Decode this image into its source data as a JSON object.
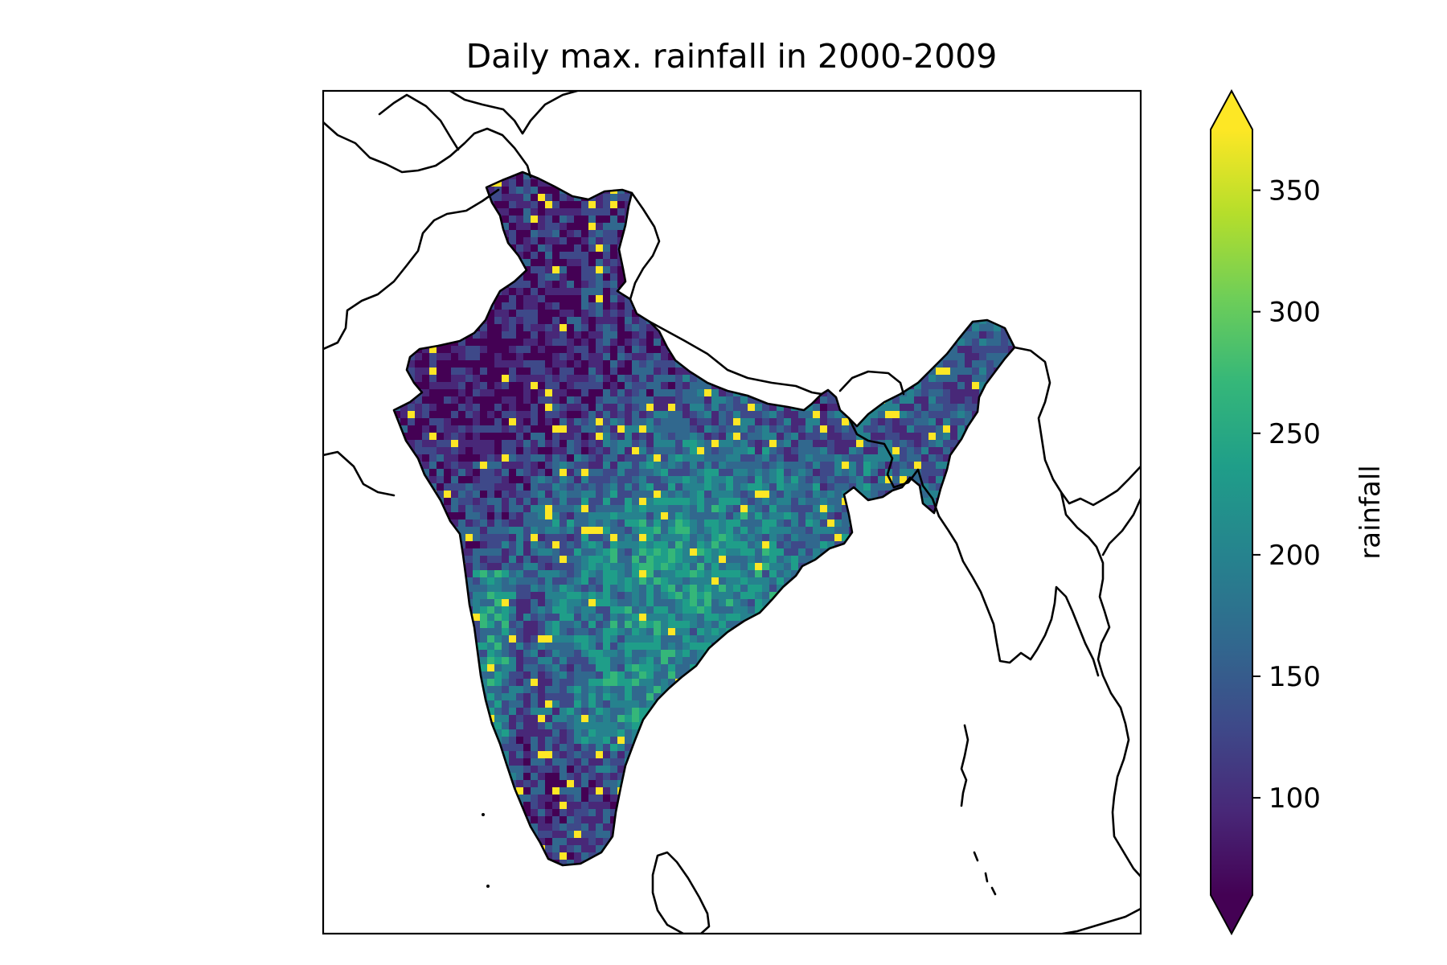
{
  "figure": {
    "title": "Daily max. rainfall in 2000-2009"
  },
  "colorbar": {
    "label": "rainfall",
    "range": [
      60,
      375
    ],
    "extend": "both",
    "colormap": "viridis",
    "ticks": [
      {
        "value": 100,
        "label": "100"
      },
      {
        "value": 150,
        "label": "150"
      },
      {
        "value": 200,
        "label": "200"
      },
      {
        "value": 250,
        "label": "250"
      },
      {
        "value": 300,
        "label": "300"
      },
      {
        "value": 350,
        "label": "350"
      }
    ],
    "colors": [
      "#440154",
      "#482878",
      "#3e4989",
      "#31688e",
      "#26828e",
      "#1f9e89",
      "#35b779",
      "#6ece58",
      "#b5de2b",
      "#fde725"
    ]
  },
  "map": {
    "region": "India and surrounding South Asia",
    "frame_color": "#000000",
    "ocean_color": "#ffffff"
  },
  "chart_data": {
    "type": "heatmap",
    "title": "Daily max. rainfall in 2000-2009",
    "colorbar_label": "rainfall",
    "value_range": [
      60,
      375
    ],
    "colorbar_ticks": [
      100,
      150,
      200,
      250,
      300,
      350
    ]
  }
}
